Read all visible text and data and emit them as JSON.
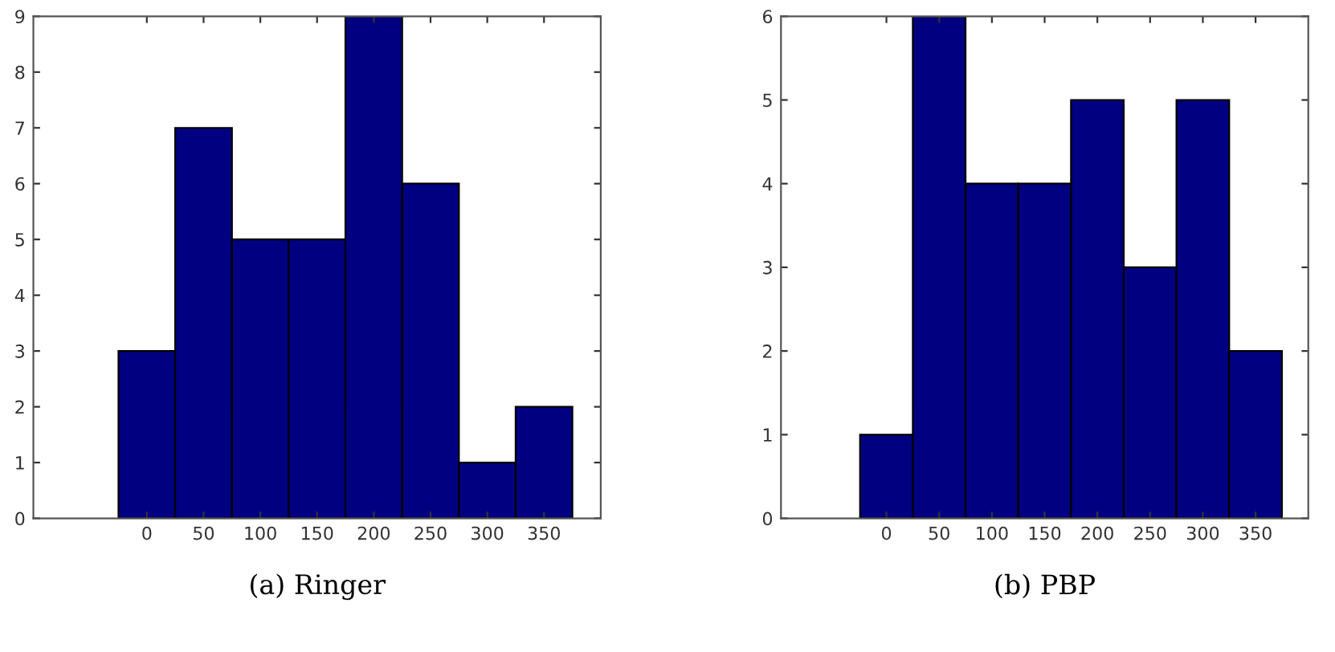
{
  "chart_data": [
    {
      "type": "histogram",
      "bins": [
        -25,
        25,
        75,
        125,
        175,
        225,
        275,
        325,
        375
      ],
      "values": [
        3,
        7,
        5,
        5,
        9,
        6,
        1,
        2
      ],
      "color": "#000080",
      "xlim": [
        -100,
        400
      ],
      "xticks": [
        0,
        50,
        100,
        150,
        200,
        250,
        300,
        350
      ],
      "ylim": [
        0,
        9
      ],
      "yticks": [
        0,
        1,
        2,
        3,
        4,
        5,
        6,
        7,
        8,
        9
      ],
      "grid": false,
      "annotations": [
        "(a) Ringer"
      ]
    },
    {
      "type": "histogram",
      "bins": [
        -25,
        25,
        75,
        125,
        175,
        225,
        275,
        325,
        375
      ],
      "values": [
        1,
        6,
        4,
        4,
        5,
        3,
        5,
        2
      ],
      "color": "#000080",
      "xlim": [
        -100,
        400
      ],
      "xticks": [
        0,
        50,
        100,
        150,
        200,
        250,
        300,
        350
      ],
      "ylim": [
        0,
        6
      ],
      "yticks": [
        0,
        1,
        2,
        3,
        4,
        5,
        6
      ],
      "grid": false,
      "annotations": [
        "(b) PBP"
      ]
    }
  ]
}
